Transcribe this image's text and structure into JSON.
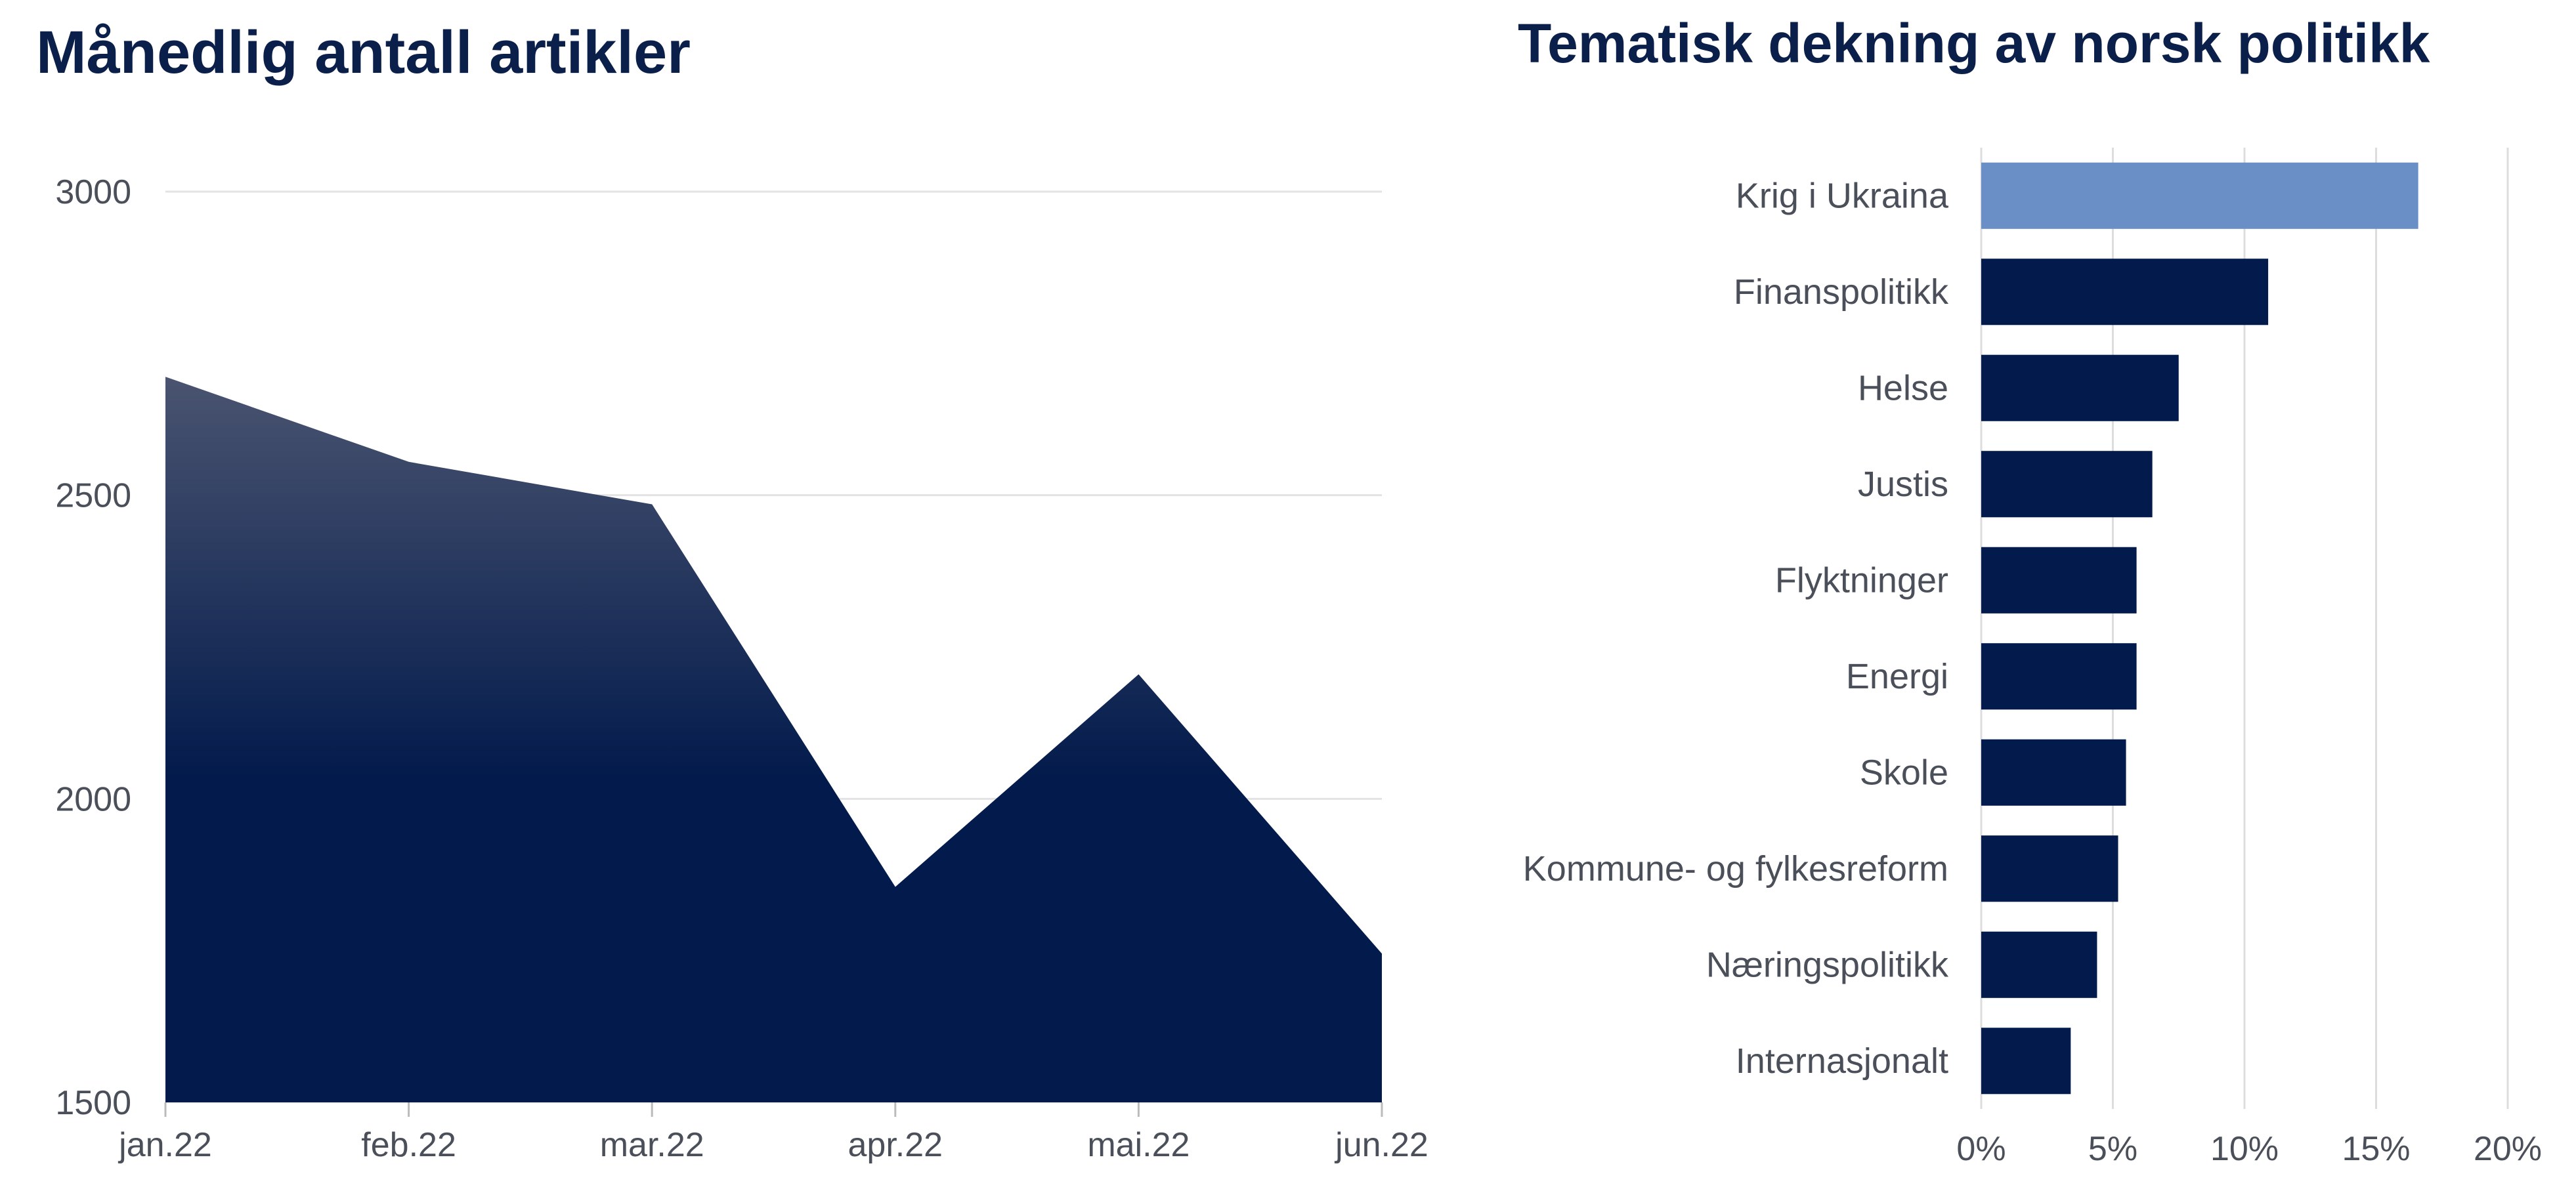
{
  "charts": {
    "monthly": {
      "title": "Månedlig antall artikler",
      "colors": {
        "area_top": "#4a5470",
        "area_bottom": "#031b4c",
        "grid": "#e3e3e3",
        "text": "#4a4f59"
      }
    },
    "topics": {
      "title": "Tematisk dekning av norsk politikk",
      "colors": {
        "highlight": "#6a8ec6",
        "bar": "#031b4c",
        "grid": "#dddddd",
        "text": "#4a4f59"
      }
    }
  },
  "chart_data": [
    {
      "type": "area",
      "title": "Månedlig antall artikler",
      "categories": [
        "jan.22",
        "feb.22",
        "mar.22",
        "apr.22",
        "mai.22",
        "jun.22"
      ],
      "series": [
        {
          "values": [
            2695,
            2555,
            2485,
            1855,
            2205,
            1745
          ]
        }
      ],
      "yticks": [
        "1500",
        "2000",
        "2500",
        "3000"
      ],
      "ylim": [
        1500,
        3000
      ],
      "grid": true,
      "legend": "none"
    },
    {
      "type": "bar",
      "orientation": "horizontal",
      "title": "Tematisk dekning av norsk politikk",
      "categories": [
        "Krig i Ukraina",
        "Finanspolitikk",
        "Helse",
        "Justis",
        "Flyktninger",
        "Energi",
        "Skole",
        "Kommune- og fylkesreform",
        "Næringspolitikk",
        "Internasjonalt"
      ],
      "values": [
        16.6,
        10.9,
        7.5,
        6.5,
        5.9,
        5.9,
        5.5,
        5.2,
        4.4,
        3.4
      ],
      "xticks": [
        "0%",
        "5%",
        "10%",
        "15%",
        "20%"
      ],
      "xlim": [
        0,
        20
      ],
      "highlighted_category": "Krig i Ukraina",
      "grid": true,
      "legend": "none"
    }
  ]
}
